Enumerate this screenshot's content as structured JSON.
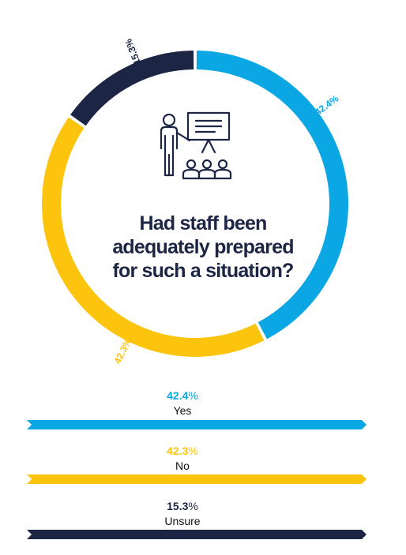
{
  "question": {
    "line1": "Had staff been",
    "line2": "adequately prepared",
    "line3": "for such a situation?"
  },
  "icon": "presenter-with-audience-icon",
  "colors": {
    "yes": "#0aa7e4",
    "no": "#fcc40d",
    "unsure": "#1c2544"
  },
  "chart_data": {
    "type": "pie",
    "style": "donut",
    "title": "Had staff been adequately prepared for such a situation?",
    "categories": [
      "Yes",
      "No",
      "Unsure"
    ],
    "values": [
      42.4,
      42.3,
      15.3
    ],
    "labels": [
      "42.4%",
      "42.3%",
      "15.3%"
    ],
    "unit": "%"
  },
  "legend": [
    {
      "value": "42.4",
      "pct": "%",
      "label": "Yes"
    },
    {
      "value": "42.3",
      "pct": "%",
      "label": "No"
    },
    {
      "value": "15.3",
      "pct": "%",
      "label": "Unsure"
    }
  ]
}
